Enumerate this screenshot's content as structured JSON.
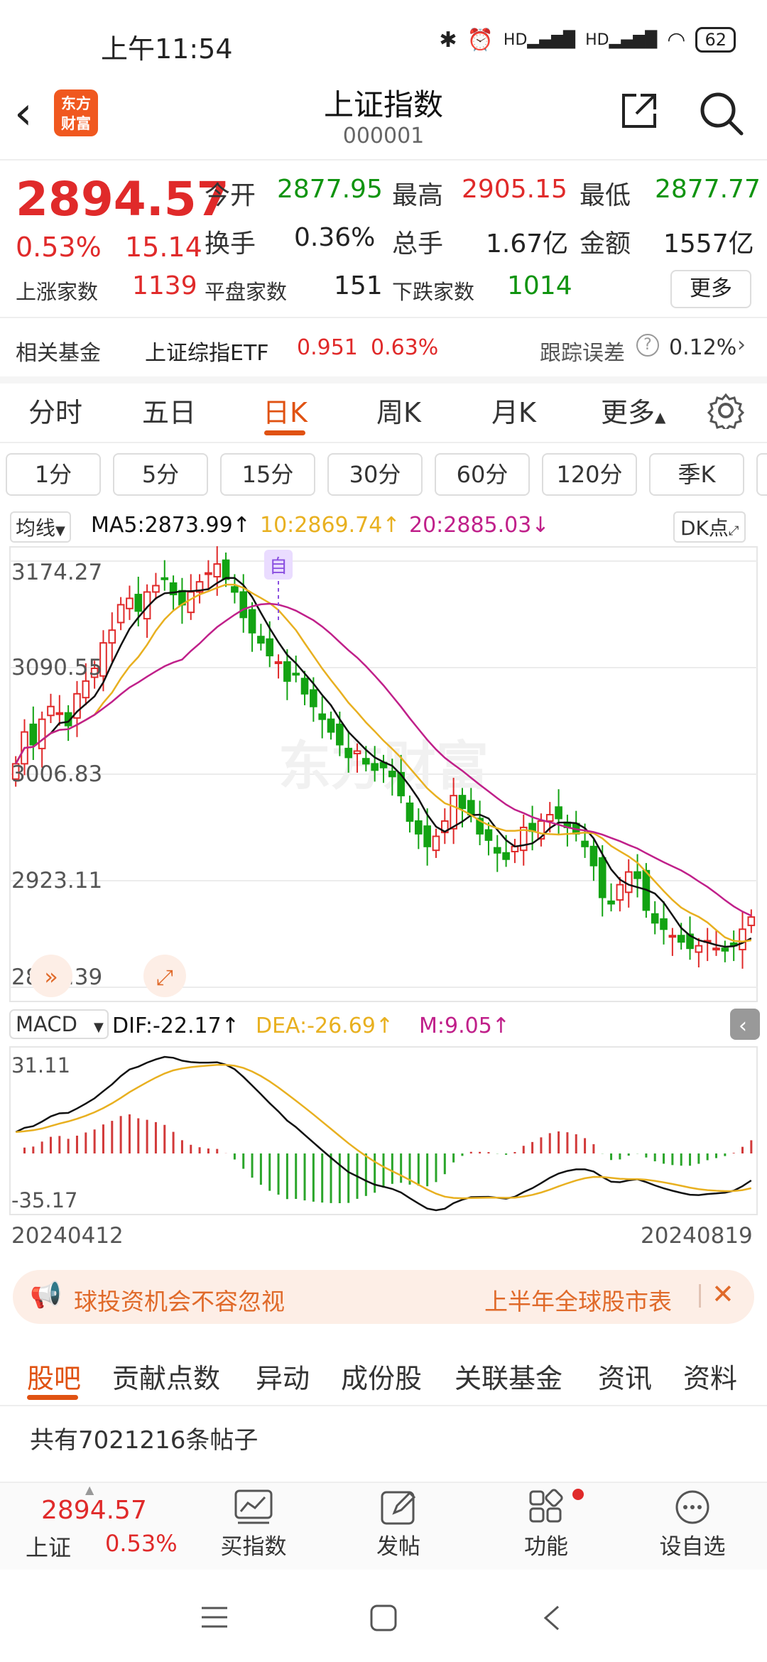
{
  "status_bar": {
    "time": "上午11:54",
    "battery": "62",
    "signal_labels": [
      "HD",
      "HD"
    ]
  },
  "header": {
    "title": "上证指数",
    "code": "000001",
    "logo_text": "东方财富"
  },
  "quote": {
    "price": "2894.57",
    "change_pct": "0.53%",
    "change": "15.14",
    "open_label": "今开",
    "open": "2877.95",
    "high_label": "最高",
    "high": "2905.15",
    "low_label": "最低",
    "low": "2877.77",
    "turnover_label": "换手",
    "turnover": "0.36%",
    "volume_label": "总手",
    "volume": "1.67亿",
    "amount_label": "金额",
    "amount": "1557亿",
    "up_label": "上涨家数",
    "up": "1139",
    "flat_label": "平盘家数",
    "flat": "151",
    "down_label": "下跌家数",
    "down": "1014",
    "more_button": "更多"
  },
  "related_fund": {
    "label": "相关基金",
    "name": "上证综指ETF",
    "price": "0.951",
    "pct": "0.63%",
    "tracking_label": "跟踪误差",
    "tracking_value": "0.12%"
  },
  "tabs": [
    {
      "label": "分时"
    },
    {
      "label": "五日"
    },
    {
      "label": "日K"
    },
    {
      "label": "周K"
    },
    {
      "label": "月K"
    },
    {
      "label": "更多"
    }
  ],
  "periods": [
    {
      "label": "1分"
    },
    {
      "label": "5分"
    },
    {
      "label": "15分"
    },
    {
      "label": "30分"
    },
    {
      "label": "60分"
    },
    {
      "label": "120分"
    },
    {
      "label": "季K"
    }
  ],
  "ma_legend": {
    "selector": "均线",
    "ma5": "MA5:2873.99",
    "ma10": "10:2869.74",
    "ma20": "20:2885.03",
    "dk_button": "DK点",
    "marker": "自"
  },
  "macd_legend": {
    "selector": "MACD",
    "dif": "DIF:-22.17",
    "dea": "DEA:-26.69",
    "m": "M:9.05"
  },
  "watermark": "东方财富",
  "chart_data": [
    {
      "type": "candlestick",
      "title": "",
      "y_ticks": [
        "3174.27",
        "3090.55",
        "3006.83",
        "2923.11",
        "2839.39"
      ],
      "ylim": [
        2839.39,
        3174.27
      ],
      "x_start": "20240412",
      "x_end": "20240819",
      "series": [
        {
          "name": "MA5",
          "color": "#111111"
        },
        {
          "name": "MA10",
          "color": "#e8b020"
        },
        {
          "name": "MA20",
          "color": "#c0208a"
        }
      ],
      "close": [
        3015,
        3040,
        3030,
        3050,
        3060,
        3055,
        3045,
        3070,
        3080,
        3090,
        3110,
        3120,
        3140,
        3145,
        3135,
        3150,
        3155,
        3160,
        3148,
        3140,
        3150,
        3158,
        3165,
        3172,
        3160,
        3150,
        3130,
        3118,
        3110,
        3100,
        3095,
        3080,
        3085,
        3070,
        3060,
        3050,
        3040,
        3030,
        3020,
        3025,
        3015,
        3010,
        3012,
        3005,
        2990,
        2970,
        2960,
        2950,
        2958,
        2970,
        2990,
        2980,
        2975,
        2960,
        2955,
        2945,
        2940,
        2950,
        2965,
        2962,
        2970,
        2975,
        2972,
        2965,
        2960,
        2950,
        2935,
        2910,
        2905,
        2920,
        2930,
        2925,
        2900,
        2890,
        2885,
        2880,
        2875,
        2870,
        2872,
        2876,
        2870,
        2868,
        2872,
        2885,
        2894.57
      ]
    },
    {
      "type": "macd",
      "y_ticks": [
        "31.11",
        "-35.17"
      ],
      "ylim": [
        -35.17,
        31.11
      ]
    }
  ],
  "promo": {
    "left": "球投资机会不容忽视",
    "right": "上半年全球股市表"
  },
  "subtabs": [
    {
      "label": "股吧"
    },
    {
      "label": "贡献点数"
    },
    {
      "label": "异动"
    },
    {
      "label": "成份股"
    },
    {
      "label": "关联基金"
    },
    {
      "label": "资讯"
    },
    {
      "label": "资料"
    }
  ],
  "posts_text": "共有7021216条帖子",
  "bottom_bar": {
    "index_price": "2894.57",
    "index_name": "上证",
    "index_pct": "0.53%",
    "items": [
      {
        "label": "买指数"
      },
      {
        "label": "发帖"
      },
      {
        "label": "功能"
      },
      {
        "label": "设自选"
      }
    ]
  }
}
